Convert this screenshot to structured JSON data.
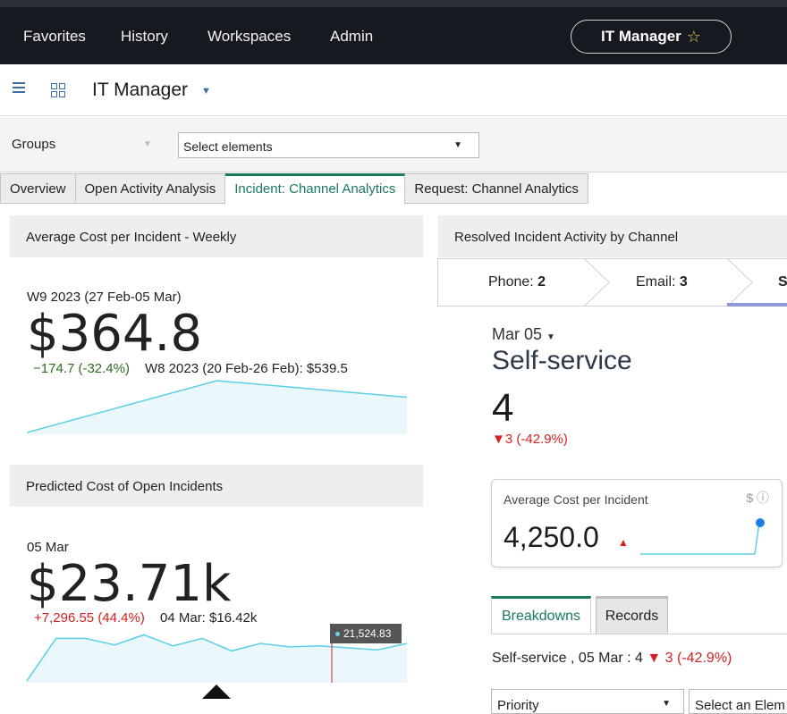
{
  "topnav": {
    "items": [
      "Favorites",
      "History",
      "Workspaces",
      "Admin"
    ],
    "manager_button": "IT Manager"
  },
  "header": {
    "title": "IT Manager"
  },
  "filters": {
    "groups_label": "Groups",
    "select_value": "Select elements"
  },
  "tabs": [
    {
      "label": "Overview",
      "active": false
    },
    {
      "label": "Open Activity Analysis",
      "active": false
    },
    {
      "label": "Incident: Channel Analytics",
      "active": true
    },
    {
      "label": "Request: Channel Analytics",
      "active": false
    }
  ],
  "panel_avg_cost": {
    "title": "Average Cost per Incident - Weekly",
    "period": "W9 2023 (27 Feb-05 Mar)",
    "value": "$364.8",
    "delta": "−174.7 (-32.4%)",
    "compare": "W8 2023 (20 Feb-26 Feb): $539.5",
    "sparkline": [
      0.0,
      1.0,
      0.68
    ]
  },
  "panel_predicted": {
    "title": "Predicted Cost of Open Incidents",
    "period": "05 Mar",
    "value": "$23.71k",
    "delta": "+7,296.55 (44.4%)",
    "compare": "04 Mar: $16.42k",
    "tooltip": "21,524.83",
    "sparkline": [
      0.0,
      0.85,
      0.85,
      0.72,
      0.92,
      0.7,
      0.85,
      0.6,
      0.75,
      0.68,
      0.7,
      0.66,
      0.62,
      0.75
    ]
  },
  "panel_channel": {
    "title": "Resolved Incident Activity by Channel",
    "channels": [
      {
        "name": "Phone",
        "value": "2"
      },
      {
        "name": "Email",
        "value": "3"
      },
      {
        "name": "Se",
        "value": ""
      }
    ],
    "date": "Mar 05",
    "selected_channel": "Self-service",
    "selected_value": "4",
    "selected_delta": "▼3 (-42.9%)",
    "kpi": {
      "title": "Average Cost per Incident",
      "value": "4,250.0",
      "icons": "$ ⓘ"
    },
    "bottom_tabs": [
      "Breakdowns",
      "Records"
    ],
    "summary_prefix": "Self-service , 05 Mar : 4 ",
    "summary_delta": "▼ 3 (-42.9%)",
    "bottom_selects": [
      "Priority",
      "Select an Elem"
    ]
  },
  "colors": {
    "accent": "#1a7a5e",
    "spark": "#5bcfe6",
    "negative": "#d42020",
    "positive_change": "#2f6b1e"
  }
}
